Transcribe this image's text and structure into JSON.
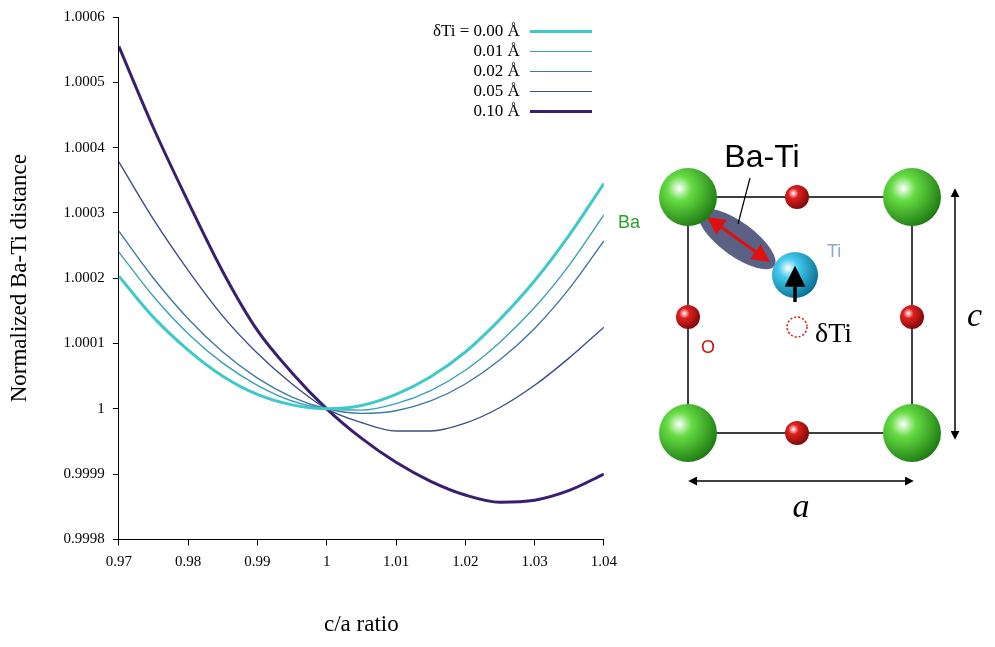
{
  "chart_data": {
    "type": "line",
    "y_label": "Normalized Ba-Ti distance",
    "x_label": "c/a ratio",
    "x": [
      0.97,
      0.975,
      0.98,
      0.985,
      0.99,
      0.995,
      1.0,
      1.005,
      1.01,
      1.015,
      1.02,
      1.025,
      1.03,
      1.035,
      1.04
    ],
    "series": [
      {
        "name": "δTi = 0.00 Å",
        "color": "#3fc9c9",
        "line_style": "thick",
        "values": [
          1.000203,
          1.00014,
          1.00009,
          1.00005,
          1.000022,
          1.000006,
          1.0,
          1.000005,
          1.000022,
          1.000049,
          1.000087,
          1.000137,
          1.000196,
          1.000266,
          1.000345
        ]
      },
      {
        "name": "0.01 Å",
        "color": "#3aa0b8",
        "line_style": "thin",
        "values": [
          1.00024,
          1.000172,
          1.000115,
          1.00007,
          1.000036,
          1.000012,
          1.0,
          0.999998,
          1.000008,
          1.000028,
          1.000059,
          1.000102,
          1.000155,
          1.00022,
          1.000297
        ]
      },
      {
        "name": "0.02 Å",
        "color": "#3d7aa0",
        "line_style": "thin",
        "values": [
          1.000272,
          1.0002,
          1.000138,
          1.000087,
          1.000047,
          1.000018,
          1.0,
          0.999993,
          0.999997,
          1.000012,
          1.000038,
          1.000075,
          1.000123,
          1.000184,
          1.000257
        ]
      },
      {
        "name": "0.05 Å",
        "color": "#3b4f8a",
        "line_style": "thin",
        "values": [
          1.000378,
          1.00029,
          1.000212,
          1.000142,
          1.000085,
          1.000038,
          1.0,
          0.999979,
          0.999966,
          0.999966,
          0.999978,
          1.000002,
          1.000036,
          1.000078,
          1.000125
        ]
      },
      {
        "name": "0.10 Å",
        "color": "#3a1f6e",
        "line_style": "thick",
        "values": [
          1.000555,
          1.00043,
          1.000317,
          1.00021,
          1.00012,
          1.000055,
          1.0,
          0.999955,
          0.999918,
          0.999889,
          0.999868,
          0.999857,
          0.99986,
          0.999875,
          0.9999
        ]
      }
    ],
    "xlim": [
      0.97,
      1.04
    ],
    "xticks": [
      0.97,
      0.98,
      0.99,
      1,
      1.01,
      1.02,
      1.03,
      1.04
    ],
    "ylim": [
      0.9998,
      1.0006
    ],
    "yticks": [
      0.9998,
      0.9999,
      1,
      1.0001,
      1.0002,
      1.0003,
      1.0004,
      1.0005,
      1.0006
    ],
    "grid": false,
    "legend": "upper right"
  },
  "diagram": {
    "bond_label": "Ba-Ti",
    "atom_labels": {
      "ba": "Ba",
      "ti": "Ti",
      "o": "O"
    },
    "displacement_label": "δTi",
    "c_label": "c",
    "a_label": "a"
  }
}
